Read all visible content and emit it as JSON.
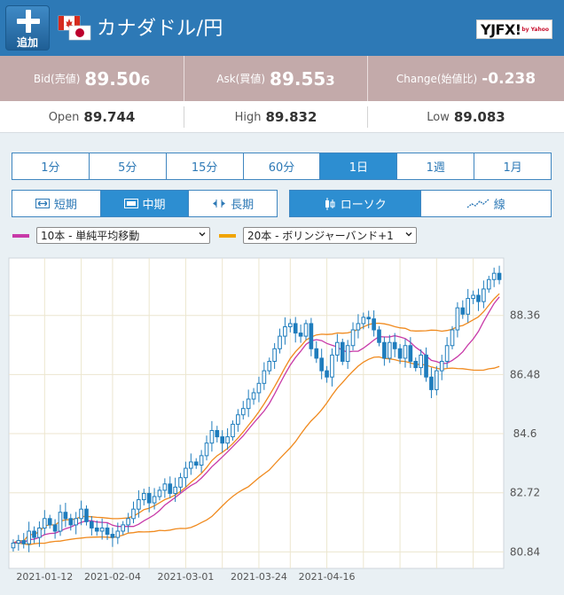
{
  "header": {
    "add_label": "追加",
    "title": "カナダドル/円",
    "logo_text": "YJFX!",
    "logo_sub": "by Yahoo",
    "colors": {
      "bar": "#2d79b6"
    }
  },
  "quotes": {
    "bid": {
      "label": "Bid(売値)",
      "main": "89.50",
      "tail": "6"
    },
    "ask": {
      "label": "Ask(買値)",
      "main": "89.55",
      "tail": "3"
    },
    "change": {
      "label": "Change(始値比)",
      "value": "-0.238"
    }
  },
  "stats": {
    "open": {
      "label": "Open",
      "main": "89.7",
      "tail": "44"
    },
    "high": {
      "label": "High",
      "main": "89.8",
      "tail": "32"
    },
    "low": {
      "label": "Low",
      "main": "89.0",
      "tail": "83"
    }
  },
  "timeframes": [
    {
      "label": "1分",
      "active": false
    },
    {
      "label": "5分",
      "active": false
    },
    {
      "label": "15分",
      "active": false
    },
    {
      "label": "60分",
      "active": false
    },
    {
      "label": "1日",
      "active": true
    },
    {
      "label": "1週",
      "active": false
    },
    {
      "label": "1月",
      "active": false
    }
  ],
  "terms": [
    {
      "label": "短期",
      "icon": "short-term-icon",
      "active": false
    },
    {
      "label": "中期",
      "icon": "mid-term-icon",
      "active": true
    },
    {
      "label": "長期",
      "icon": "long-term-icon",
      "active": false
    }
  ],
  "chart_types": [
    {
      "label": "ローソク",
      "icon": "candlestick-icon",
      "active": true
    },
    {
      "label": "線",
      "icon": "line-chart-icon",
      "active": false
    }
  ],
  "indicators": {
    "first": {
      "selected": "10本 - 単純平均移動",
      "color": "#c83aa8"
    },
    "second": {
      "selected": "20本 - ボリンジャーバンド+1",
      "color": "#f0a400"
    }
  },
  "chart_data": {
    "type": "candlestick",
    "x_tick_labels": [
      "2021-01-12",
      "2021-02-04",
      "2021-03-01",
      "2021-03-24",
      "2021-04-16"
    ],
    "y_tick_labels": [
      "88.36",
      "86.48",
      "84.6",
      "82.72",
      "80.84"
    ],
    "ylim": [
      80.4,
      90.1
    ],
    "closes": [
      81.12,
      81.2,
      81.1,
      81.5,
      81.3,
      81.6,
      81.9,
      81.7,
      81.5,
      82.1,
      81.9,
      81.7,
      81.9,
      82.2,
      81.8,
      81.6,
      81.5,
      81.6,
      81.4,
      81.3,
      81.5,
      81.7,
      81.9,
      82.2,
      82.5,
      82.7,
      82.4,
      82.6,
      82.8,
      83.0,
      82.7,
      82.9,
      83.2,
      83.5,
      83.7,
      83.6,
      83.9,
      84.3,
      84.7,
      84.5,
      84.3,
      84.5,
      84.9,
      85.2,
      85.4,
      85.7,
      85.9,
      86.2,
      86.6,
      86.9,
      87.3,
      87.7,
      88.0,
      88.1,
      87.8,
      87.7,
      88.1,
      87.3,
      87.0,
      86.6,
      86.4,
      87.1,
      87.5,
      86.9,
      87.4,
      87.9,
      88.1,
      88.3,
      88.25,
      87.9,
      87.5,
      87.0,
      87.5,
      87.3,
      87.0,
      87.4,
      86.9,
      86.7,
      87.1,
      86.4,
      86.0,
      86.6,
      86.9,
      87.4,
      87.9,
      88.6,
      88.4,
      88.9,
      89.0,
      88.8,
      89.2,
      89.5,
      89.7,
      89.5
    ],
    "series": [
      {
        "name": "10本 - 単純平均移動",
        "color": "#c83aa8"
      },
      {
        "name": "20本 - ボリンジャーバンド+1",
        "color": "#f0a400"
      }
    ],
    "grid": true,
    "price_axis": "right"
  }
}
